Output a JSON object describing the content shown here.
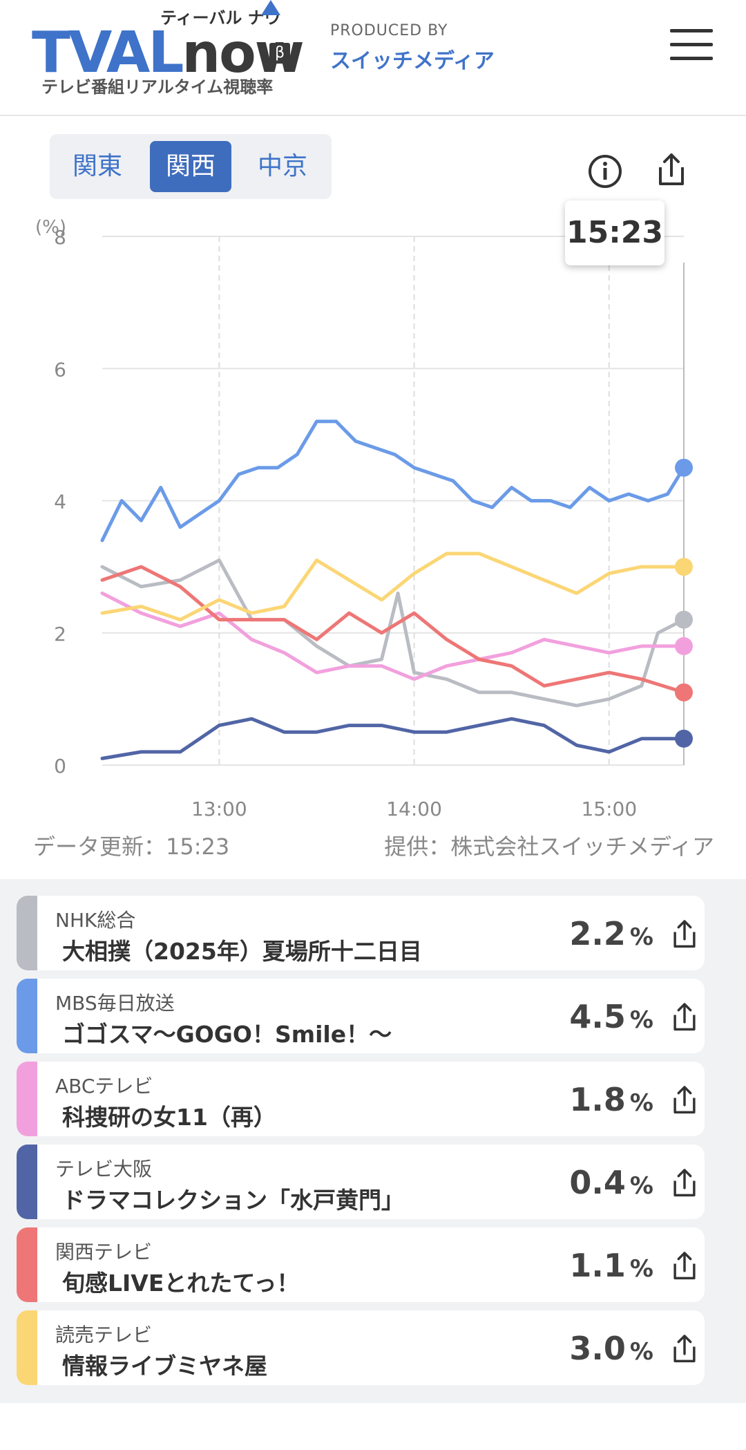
{
  "header": {
    "logo_main": "TVAL",
    "logo_now": "now",
    "logo_kana": "ティーバル ナウ",
    "logo_beta": "β",
    "logo_subtitle": "テレビ番組リアルタイム視聴率",
    "produced_by": "PRODUCED BY",
    "producer": "スイッチメディア",
    "accent_color": "#3f73c9"
  },
  "regions": [
    {
      "label": "関東",
      "active": false
    },
    {
      "label": "関西",
      "active": true
    },
    {
      "label": "中京",
      "active": false
    }
  ],
  "icons": {
    "info": "info-icon",
    "share": "share-icon",
    "menu": "hamburger-menu-icon"
  },
  "tooltip_time": "15:23",
  "chart_data": {
    "type": "line",
    "y_unit": "(%)",
    "ylim": [
      0,
      8
    ],
    "y_ticks": [
      "0",
      "2",
      "4",
      "6",
      "8"
    ],
    "x_ticks": [
      "13:00",
      "14:00",
      "15:00"
    ],
    "x_range": [
      "12:24",
      "15:23"
    ],
    "grid": true,
    "series": [
      {
        "name": "NHK総合",
        "color": "#b9bcc3",
        "x": [
          "12:24",
          "12:36",
          "12:48",
          "13:00",
          "13:10",
          "13:20",
          "13:30",
          "13:40",
          "13:50",
          "13:55",
          "14:00",
          "14:10",
          "14:20",
          "14:30",
          "14:40",
          "14:50",
          "15:00",
          "15:10",
          "15:15",
          "15:23"
        ],
        "y": [
          3.0,
          2.7,
          2.8,
          3.1,
          2.2,
          2.2,
          1.8,
          1.5,
          1.6,
          2.6,
          1.4,
          1.3,
          1.1,
          1.1,
          1.0,
          0.9,
          1.0,
          1.2,
          2.0,
          2.2
        ]
      },
      {
        "name": "MBS毎日放送",
        "color": "#6b9be8",
        "x": [
          "12:24",
          "12:30",
          "12:36",
          "12:42",
          "12:48",
          "12:54",
          "13:00",
          "13:06",
          "13:12",
          "13:18",
          "13:24",
          "13:30",
          "13:36",
          "13:42",
          "13:48",
          "13:54",
          "14:00",
          "14:06",
          "14:12",
          "14:18",
          "14:24",
          "14:30",
          "14:36",
          "14:42",
          "14:48",
          "14:54",
          "15:00",
          "15:06",
          "15:12",
          "15:18",
          "15:23"
        ],
        "y": [
          3.4,
          4.0,
          3.7,
          4.2,
          3.6,
          3.8,
          4.0,
          4.4,
          4.5,
          4.5,
          4.7,
          5.2,
          5.2,
          4.9,
          4.8,
          4.7,
          4.5,
          4.4,
          4.3,
          4.0,
          3.9,
          4.2,
          4.0,
          4.0,
          3.9,
          4.2,
          4.0,
          4.1,
          4.0,
          4.1,
          4.5
        ]
      },
      {
        "name": "ABCテレビ",
        "color": "#f2a0dd",
        "x": [
          "12:24",
          "12:36",
          "12:48",
          "13:00",
          "13:10",
          "13:20",
          "13:30",
          "13:40",
          "13:50",
          "14:00",
          "14:10",
          "14:20",
          "14:30",
          "14:40",
          "14:50",
          "15:00",
          "15:10",
          "15:23"
        ],
        "y": [
          2.6,
          2.3,
          2.1,
          2.3,
          1.9,
          1.7,
          1.4,
          1.5,
          1.5,
          1.3,
          1.5,
          1.6,
          1.7,
          1.9,
          1.8,
          1.7,
          1.8,
          1.8
        ]
      },
      {
        "name": "テレビ大阪",
        "color": "#5165a6",
        "x": [
          "12:24",
          "12:36",
          "12:48",
          "12:54",
          "13:00",
          "13:10",
          "13:20",
          "13:30",
          "13:40",
          "13:50",
          "14:00",
          "14:10",
          "14:20",
          "14:30",
          "14:40",
          "14:50",
          "15:00",
          "15:10",
          "15:23"
        ],
        "y": [
          0.1,
          0.2,
          0.2,
          0.4,
          0.6,
          0.7,
          0.5,
          0.5,
          0.6,
          0.6,
          0.5,
          0.5,
          0.6,
          0.7,
          0.6,
          0.3,
          0.2,
          0.4,
          0.4
        ]
      },
      {
        "name": "関西テレビ",
        "color": "#ee7676",
        "x": [
          "12:24",
          "12:36",
          "12:48",
          "13:00",
          "13:10",
          "13:20",
          "13:30",
          "13:40",
          "13:50",
          "14:00",
          "14:10",
          "14:20",
          "14:30",
          "14:40",
          "14:50",
          "15:00",
          "15:10",
          "15:23"
        ],
        "y": [
          2.8,
          3.0,
          2.7,
          2.2,
          2.2,
          2.2,
          1.9,
          2.3,
          2.0,
          2.3,
          1.9,
          1.6,
          1.5,
          1.2,
          1.3,
          1.4,
          1.3,
          1.1
        ]
      },
      {
        "name": "読売テレビ",
        "color": "#fbd675",
        "x": [
          "12:24",
          "12:36",
          "12:48",
          "13:00",
          "13:10",
          "13:20",
          "13:30",
          "13:40",
          "13:50",
          "14:00",
          "14:10",
          "14:20",
          "14:30",
          "14:40",
          "14:50",
          "15:00",
          "15:10",
          "15:23"
        ],
        "y": [
          2.3,
          2.4,
          2.2,
          2.5,
          2.3,
          2.4,
          3.1,
          2.8,
          2.5,
          2.9,
          3.2,
          3.2,
          3.0,
          2.8,
          2.6,
          2.9,
          3.0,
          3.0
        ]
      }
    ]
  },
  "meta": {
    "updated": "データ更新：15:23",
    "source": "提供：株式会社スイッチメディア"
  },
  "programs": [
    {
      "channel": "NHK総合",
      "title": "大相撲（2025年）夏場所十二日目",
      "rating": "2.2",
      "unit": "%",
      "color": "#b9bcc3"
    },
    {
      "channel": "MBS毎日放送",
      "title": "ゴゴスマ〜GOGO！Smile！〜",
      "rating": "4.5",
      "unit": "%",
      "color": "#6b9be8"
    },
    {
      "channel": "ABCテレビ",
      "title": "科捜研の女11（再）",
      "rating": "1.8",
      "unit": "%",
      "color": "#f2a0dd"
    },
    {
      "channel": "テレビ大阪",
      "title": "ドラマコレクション「水戸黄門」",
      "rating": "0.4",
      "unit": "%",
      "color": "#5165a6"
    },
    {
      "channel": "関西テレビ",
      "title": "旬感LIVEとれたてっ！",
      "rating": "1.1",
      "unit": "%",
      "color": "#ee7676"
    },
    {
      "channel": "読売テレビ",
      "title": "情報ライブミヤネ屋",
      "rating": "3.0",
      "unit": "%",
      "color": "#fbd675"
    }
  ]
}
